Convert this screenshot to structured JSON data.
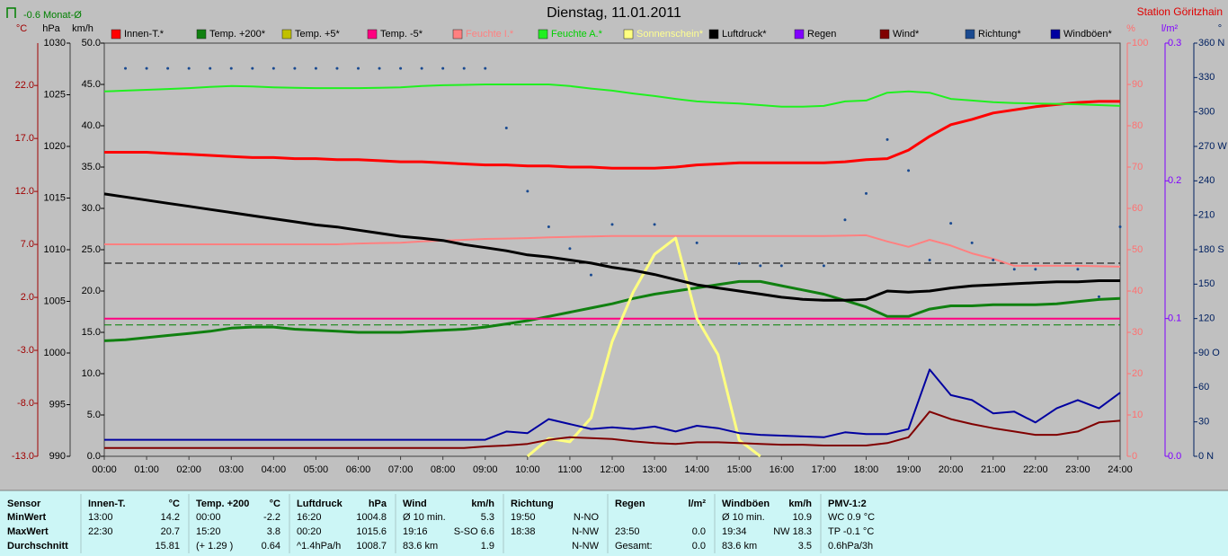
{
  "chart_data": {
    "type": "line",
    "title": "Dienstag, 11.01.2011",
    "station": "Station Göritzhain",
    "monthly_average": {
      "value": -0.6,
      "label": "-0.6 Monat-Ø",
      "axis": "C",
      "color": "#008000"
    },
    "reference_lines": [
      {
        "axis": "hPa",
        "value": 1008.7,
        "color": "#000000"
      }
    ],
    "x": [
      0,
      0.5,
      1,
      1.5,
      2,
      2.5,
      3,
      3.5,
      4,
      4.5,
      5,
      5.5,
      6,
      6.5,
      7,
      7.5,
      8,
      8.5,
      9,
      9.5,
      10,
      10.5,
      11,
      11.5,
      12,
      12.5,
      13,
      13.5,
      14,
      14.5,
      15,
      15.5,
      16,
      16.5,
      17,
      17.5,
      18,
      18.5,
      19,
      19.5,
      20,
      20.5,
      21,
      21.5,
      22,
      22.5,
      23,
      23.5,
      24
    ],
    "xlim": [
      0,
      24
    ],
    "xticks": [
      {
        "value": 0,
        "label": "00:00"
      },
      {
        "value": 1,
        "label": "01:00"
      },
      {
        "value": 2,
        "label": "02:00"
      },
      {
        "value": 3,
        "label": "03:00"
      },
      {
        "value": 4,
        "label": "04:00"
      },
      {
        "value": 5,
        "label": "05:00"
      },
      {
        "value": 6,
        "label": "06:00"
      },
      {
        "value": 7,
        "label": "07:00"
      },
      {
        "value": 8,
        "label": "08:00"
      },
      {
        "value": 9,
        "label": "09:00"
      },
      {
        "value": 10,
        "label": "10:00"
      },
      {
        "value": 11,
        "label": "11:00"
      },
      {
        "value": 12,
        "label": "12:00"
      },
      {
        "value": 13,
        "label": "13:00"
      },
      {
        "value": 14,
        "label": "14:00"
      },
      {
        "value": 15,
        "label": "15:00"
      },
      {
        "value": 16,
        "label": "16:00"
      },
      {
        "value": 17,
        "label": "17:00"
      },
      {
        "value": 18,
        "label": "18:00"
      },
      {
        "value": 19,
        "label": "19:00"
      },
      {
        "value": 20,
        "label": "20:00"
      },
      {
        "value": 21,
        "label": "21:00"
      },
      {
        "value": 22,
        "label": "22:00"
      },
      {
        "value": 23,
        "label": "23:00"
      },
      {
        "value": 24,
        "label": "24:00"
      }
    ],
    "axes": [
      {
        "id": "C",
        "side": "left",
        "label": "°C",
        "color": "#a00000",
        "lim": [
          -13,
          26
        ],
        "ticks": [
          {
            "value": -13,
            "label": "-13.0"
          },
          {
            "value": -8,
            "label": "-8.0"
          },
          {
            "value": -3,
            "label": "-3.0"
          },
          {
            "value": 2,
            "label": "2.0"
          },
          {
            "value": 7,
            "label": "7.0"
          },
          {
            "value": 12,
            "label": "12.0"
          },
          {
            "value": 17,
            "label": "17.0"
          },
          {
            "value": 22,
            "label": "22.0"
          }
        ]
      },
      {
        "id": "hPa",
        "side": "left",
        "label": "hPa",
        "color": "#000000",
        "lim": [
          990,
          1030
        ],
        "ticks": [
          990,
          995,
          1000,
          1005,
          1010,
          1015,
          1020,
          1025,
          1030
        ]
      },
      {
        "id": "kmh",
        "side": "left",
        "label": "km/h",
        "color": "#000000",
        "lim": [
          0,
          50
        ],
        "ticks": [
          {
            "value": 0,
            "label": "0.0"
          },
          {
            "value": 5,
            "label": "5.0"
          },
          {
            "value": 10,
            "label": "10.0"
          },
          {
            "value": 15,
            "label": "15.0"
          },
          {
            "value": 20,
            "label": "20.0"
          },
          {
            "value": 25,
            "label": "25.0"
          },
          {
            "value": 30,
            "label": "30.0"
          },
          {
            "value": 35,
            "label": "35.0"
          },
          {
            "value": 40,
            "label": "40.0"
          },
          {
            "value": 45,
            "label": "45.0"
          },
          {
            "value": 50,
            "label": "50.0"
          }
        ]
      },
      {
        "id": "pct",
        "side": "right",
        "label": "%",
        "color": "#ff7070",
        "lim": [
          0,
          100
        ],
        "ticks": [
          0,
          10,
          20,
          30,
          40,
          50,
          60,
          70,
          80,
          90,
          100
        ]
      },
      {
        "id": "rain",
        "side": "right",
        "label": "l/m²",
        "color": "#8000ff",
        "lim": [
          0,
          0.3
        ],
        "ticks": [
          {
            "value": 0,
            "label": "0.0"
          },
          0.1,
          0.2,
          0.3
        ]
      },
      {
        "id": "deg",
        "side": "right",
        "label": "°",
        "color": "#002060",
        "lim": [
          0,
          360
        ],
        "ticks": [
          {
            "value": 0,
            "label": "0 N"
          },
          30,
          60,
          {
            "value": 90,
            "label": "90 O"
          },
          120,
          150,
          {
            "value": 180,
            "label": "180 S"
          },
          210,
          240,
          {
            "value": 270,
            "label": "270 W"
          },
          300,
          330,
          {
            "value": 360,
            "label": "360 N"
          }
        ]
      }
    ],
    "series": [
      {
        "name": "Innen-T.*",
        "color": "#ff0000",
        "axis": "C",
        "width": 3,
        "values": [
          15.7,
          15.7,
          15.7,
          15.6,
          15.5,
          15.4,
          15.3,
          15.2,
          15.2,
          15.1,
          15.1,
          15.0,
          15.0,
          14.9,
          14.8,
          14.8,
          14.7,
          14.6,
          14.5,
          14.5,
          14.4,
          14.4,
          14.3,
          14.3,
          14.2,
          14.2,
          14.2,
          14.3,
          14.5,
          14.6,
          14.7,
          14.7,
          14.7,
          14.7,
          14.7,
          14.8,
          15.0,
          15.1,
          15.9,
          17.2,
          18.3,
          18.8,
          19.4,
          19.7,
          20.0,
          20.2,
          20.4,
          20.5,
          20.5
        ]
      },
      {
        "name": "Temp. +200*",
        "color": "#108010",
        "axis": "C",
        "width": 3,
        "values": [
          -2.1,
          -2.0,
          -1.8,
          -1.6,
          -1.4,
          -1.2,
          -0.9,
          -0.8,
          -0.8,
          -1.0,
          -1.1,
          -1.2,
          -1.3,
          -1.3,
          -1.3,
          -1.2,
          -1.1,
          -1.0,
          -0.8,
          -0.5,
          -0.2,
          0.2,
          0.6,
          1.0,
          1.4,
          1.9,
          2.3,
          2.6,
          2.9,
          3.2,
          3.5,
          3.5,
          3.1,
          2.7,
          2.3,
          1.7,
          1.1,
          0.2,
          0.2,
          0.9,
          1.2,
          1.2,
          1.3,
          1.3,
          1.3,
          1.4,
          1.6,
          1.8,
          1.9
        ]
      },
      {
        "name": "Temp. +5*",
        "color": "#c0c000",
        "axis": "C"
      },
      {
        "name": "Temp. -5*",
        "color": "#ff0080",
        "axis": "C",
        "width": 2,
        "values": [
          0,
          0,
          0,
          0,
          0,
          0,
          0,
          0,
          0,
          0,
          0,
          0,
          0,
          0,
          0,
          0,
          0,
          0,
          0,
          0,
          0,
          0,
          0,
          0,
          0,
          0,
          0,
          0,
          0,
          0,
          0,
          0,
          0,
          0,
          0,
          0,
          0,
          0,
          0,
          0,
          0,
          0,
          0,
          0,
          0,
          0,
          0,
          0,
          0
        ]
      },
      {
        "name": "Feuchte I.*",
        "color": "#ff8080",
        "legend_text_color": "#ff8080",
        "axis": "pct",
        "width": 2,
        "values": [
          51.3,
          51.3,
          51.3,
          51.3,
          51.3,
          51.3,
          51.3,
          51.3,
          51.3,
          51.3,
          51.3,
          51.3,
          51.5,
          51.6,
          51.7,
          52.0,
          52.2,
          52.4,
          52.6,
          52.7,
          52.8,
          53.0,
          53.1,
          53.2,
          53.3,
          53.3,
          53.3,
          53.3,
          53.3,
          53.3,
          53.3,
          53.3,
          53.3,
          53.3,
          53.3,
          53.4,
          53.5,
          52.0,
          50.7,
          52.4,
          51.0,
          49.1,
          47.8,
          46.1,
          46.1,
          46.1,
          46.1,
          46.0,
          45.9
        ]
      },
      {
        "name": "Feuchte A.*",
        "color": "#20f020",
        "legend_text_color": "#00d000",
        "axis": "pct",
        "width": 2,
        "values": [
          88.3,
          88.5,
          88.7,
          88.9,
          89.1,
          89.4,
          89.6,
          89.5,
          89.3,
          89.2,
          89.1,
          89.1,
          89.1,
          89.2,
          89.3,
          89.6,
          89.8,
          89.9,
          90.0,
          90.0,
          90.0,
          90.0,
          89.6,
          89.0,
          88.5,
          87.8,
          87.2,
          86.5,
          85.9,
          85.6,
          85.4,
          85.0,
          84.6,
          84.6,
          84.8,
          85.9,
          86.1,
          88.0,
          88.3,
          88.0,
          86.5,
          86.1,
          85.7,
          85.5,
          85.4,
          85.3,
          85.2,
          85.0,
          84.8
        ]
      },
      {
        "name": "Sonnenschein*",
        "color": "#ffff80",
        "legend_text_color": "#ffff90",
        "axis": "pct",
        "width": 3,
        "values": [
          null,
          null,
          null,
          null,
          null,
          null,
          null,
          null,
          null,
          null,
          null,
          null,
          null,
          null,
          null,
          null,
          null,
          null,
          null,
          null,
          0,
          4.3,
          3.5,
          9.3,
          27.8,
          39.8,
          48.9,
          52.8,
          33.3,
          24.6,
          3.9,
          0,
          null,
          null,
          null,
          null,
          null,
          null,
          null,
          null,
          null,
          null,
          null,
          null,
          null,
          null,
          null,
          null,
          null
        ]
      },
      {
        "name": "Luftdruck*",
        "color": "#000000",
        "axis": "hPa",
        "width": 3,
        "values": [
          1015.4,
          1015.1,
          1014.8,
          1014.5,
          1014.2,
          1013.9,
          1013.6,
          1013.3,
          1013.0,
          1012.7,
          1012.4,
          1012.2,
          1011.9,
          1011.6,
          1011.3,
          1011.1,
          1010.9,
          1010.5,
          1010.2,
          1009.9,
          1009.5,
          1009.3,
          1009.0,
          1008.7,
          1008.3,
          1008.0,
          1007.6,
          1007.1,
          1006.6,
          1006.3,
          1006.0,
          1005.7,
          1005.4,
          1005.2,
          1005.1,
          1005.1,
          1005.2,
          1006.0,
          1005.9,
          1006.0,
          1006.3,
          1006.5,
          1006.6,
          1006.7,
          1006.8,
          1006.9,
          1006.9,
          1007.0,
          1007.0
        ]
      },
      {
        "name": "Regen",
        "color": "#8000ff",
        "axis": "rain"
      },
      {
        "name": "Wind*",
        "color": "#800000",
        "axis": "kmh",
        "width": 2,
        "values": [
          1.0,
          1.0,
          1.0,
          1.0,
          1.0,
          1.0,
          1.0,
          1.0,
          1.0,
          1.0,
          1.0,
          1.0,
          1.0,
          1.0,
          1.0,
          1.0,
          1.0,
          1.0,
          1.2,
          1.3,
          1.5,
          2.0,
          2.3,
          2.2,
          2.1,
          1.8,
          1.6,
          1.5,
          1.7,
          1.7,
          1.6,
          1.5,
          1.4,
          1.4,
          1.3,
          1.3,
          1.3,
          1.6,
          2.3,
          5.4,
          4.5,
          3.9,
          3.4,
          3.0,
          2.6,
          2.6,
          3.0,
          4.1,
          4.3
        ]
      },
      {
        "name": "Richtung*",
        "color": "#1a4a90",
        "axis": "deg",
        "kind": "scatter",
        "values": [
          null,
          338,
          338,
          338,
          338,
          338,
          338,
          338,
          338,
          338,
          338,
          338,
          338,
          338,
          338,
          338,
          338,
          338,
          338,
          286,
          231,
          200,
          181,
          158,
          202,
          null,
          202,
          null,
          186,
          null,
          168,
          166,
          166,
          null,
          166,
          206,
          229,
          276,
          249,
          171,
          203,
          186,
          171,
          163,
          163,
          null,
          163,
          139,
          200
        ]
      },
      {
        "name": "Windböen*",
        "color": "#0000a0",
        "axis": "kmh",
        "width": 2,
        "values": [
          2.0,
          2.0,
          2.0,
          2.0,
          2.0,
          2.0,
          2.0,
          2.0,
          2.0,
          2.0,
          2.0,
          2.0,
          2.0,
          2.0,
          2.0,
          2.0,
          2.0,
          2.0,
          2.0,
          3.0,
          2.8,
          4.5,
          3.9,
          3.3,
          3.5,
          3.3,
          3.6,
          3.0,
          3.7,
          3.4,
          2.8,
          2.6,
          2.5,
          2.4,
          2.3,
          2.9,
          2.7,
          2.7,
          3.3,
          10.5,
          7.4,
          6.8,
          5.2,
          5.4,
          4.1,
          5.8,
          6.8,
          5.8,
          7.7
        ]
      }
    ]
  },
  "stats": {
    "row_labels": [
      "Sensor",
      "MinWert",
      "MaxWert",
      "Durchschnitt"
    ],
    "groups": [
      {
        "name": "Innen-T.",
        "unit": "°C",
        "cells": [
          [
            "13:00",
            "14.2"
          ],
          [
            "22:30",
            "20.7"
          ],
          [
            null,
            "15.81"
          ]
        ]
      },
      {
        "name": "Temp. +200",
        "unit": "°C",
        "cells": [
          [
            "00:00",
            "-2.2"
          ],
          [
            "15:20",
            "3.8"
          ],
          [
            "(+ 1.29 )",
            "0.64"
          ]
        ]
      },
      {
        "name": "Luftdruck",
        "unit": "hPa",
        "cells": [
          [
            "16:20",
            "1004.8"
          ],
          [
            "00:20",
            "1015.6"
          ],
          [
            "^1.4hPa/h",
            "1008.7"
          ]
        ]
      },
      {
        "name": "Wind",
        "unit": "km/h",
        "cells": [
          [
            "Ø 10 min.",
            "5.3"
          ],
          [
            "19:16",
            "S-SO 6.6"
          ],
          [
            "83.6 km",
            "1.9"
          ]
        ]
      },
      {
        "name": "Richtung",
        "cells": [
          [
            "19:50",
            "N-NO"
          ],
          [
            "18:38",
            "N-NW"
          ],
          [
            null,
            "N-NW"
          ]
        ]
      },
      {
        "name": "Regen",
        "unit": "l/m²",
        "cells": [
          [
            null,
            null
          ],
          [
            "23:50",
            "0.0"
          ],
          [
            "Gesamt:",
            "0.0"
          ]
        ]
      },
      {
        "name": "Windböen",
        "unit": "km/h",
        "cells": [
          [
            "Ø 10 min.",
            "10.9"
          ],
          [
            "19:34",
            "NW 18.3"
          ],
          [
            "83.6 km",
            "3.5"
          ]
        ]
      },
      {
        "name": "PMV-1:2",
        "cells": [
          [
            "WC 0.9 °C"
          ],
          [
            "TP -0.1 °C"
          ],
          [
            "0.6hPa/3h"
          ]
        ]
      }
    ]
  }
}
